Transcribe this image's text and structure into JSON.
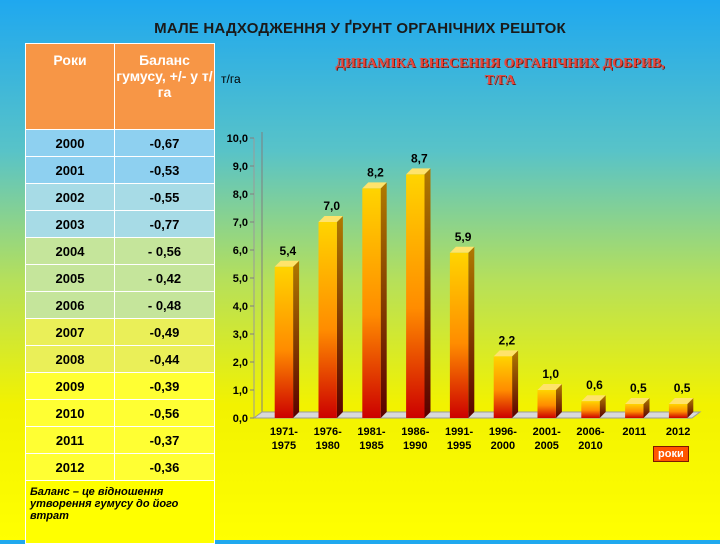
{
  "slide_title": "МАЛЕ НАДХОДЖЕННЯ У ҐРУНТ ОРГАНІЧНИХ РЕШТОК",
  "table": {
    "headers": [
      "Роки",
      "Баланс гумусу, +/- у т/га"
    ],
    "rows": [
      [
        "2000",
        "-0,67"
      ],
      [
        "2001",
        "-0,53"
      ],
      [
        "2002",
        "-0,55"
      ],
      [
        "2003",
        "-0,77"
      ],
      [
        "2004",
        "- 0,56"
      ],
      [
        "2005",
        "- 0,42"
      ],
      [
        "2006",
        "- 0,48"
      ],
      [
        "2007",
        "-0,49"
      ],
      [
        "2008",
        "-0,44"
      ],
      [
        "2009",
        "-0,39"
      ],
      [
        "2010",
        "-0,56"
      ],
      [
        "2011",
        "-0,37"
      ],
      [
        "2012",
        "-0,36"
      ]
    ],
    "note": "Баланс – це відношення утворення гумусу до його втрат"
  },
  "chart_data": {
    "type": "bar",
    "title": "ДИНАМІКА ВНЕСЕННЯ ОРГАНІЧНИХ ДОБРИВ, Т/ГА",
    "ylabel": "т/га",
    "legend": "роки",
    "categories": [
      "1971-1975",
      "1976-1980",
      "1981-1985",
      "1986-1990",
      "1991-1995",
      "1996-2000",
      "2001-2005",
      "2006-2010",
      "2011",
      "2012"
    ],
    "values": [
      5.4,
      7.0,
      8.2,
      8.7,
      5.9,
      2.2,
      1.0,
      0.6,
      0.5,
      0.5
    ],
    "value_labels": [
      "5,4",
      "7,0",
      "8,2",
      "8,7",
      "5,9",
      "2,2",
      "1,0",
      "0,6",
      "0,5",
      "0,5"
    ],
    "ylim": [
      0,
      10
    ],
    "yticks": [
      "0,0",
      "1,0",
      "2,0",
      "3,0",
      "4,0",
      "5,0",
      "6,0",
      "7,0",
      "8,0",
      "9,0",
      "10,0"
    ],
    "grid": false,
    "colors": {
      "bar_top": "#ffd400",
      "bar_bottom": "#cc0000",
      "bar_dark": "#5a0000",
      "value_label": "#000000"
    }
  }
}
